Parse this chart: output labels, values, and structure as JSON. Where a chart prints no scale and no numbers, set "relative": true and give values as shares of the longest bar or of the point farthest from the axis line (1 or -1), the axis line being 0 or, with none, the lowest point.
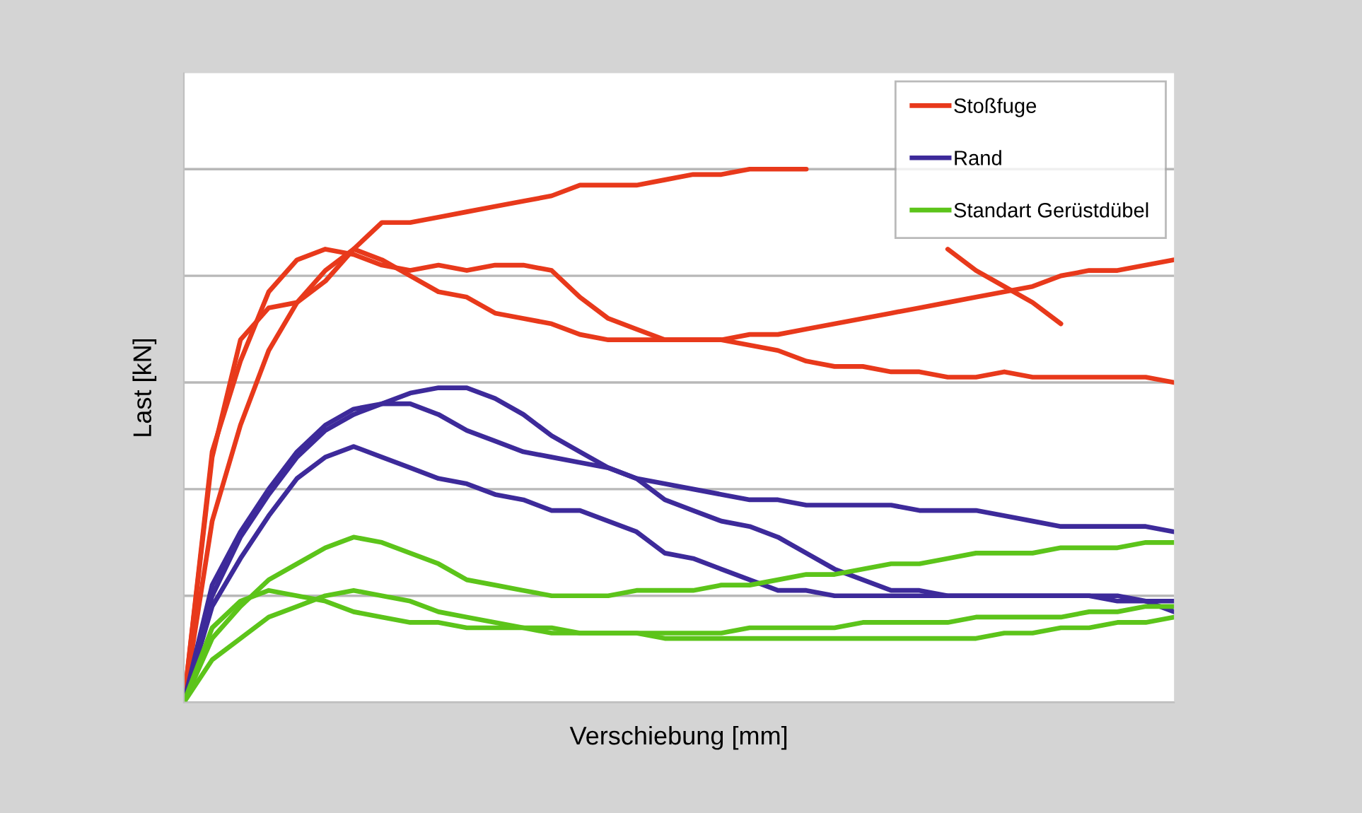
{
  "chart_data": {
    "type": "line",
    "xlabel": "Verschiebung [mm]",
    "ylabel": "Last [kN]",
    "relative": true,
    "grid": "y",
    "legend": "top right",
    "marker": "none",
    "line_style": "solid",
    "tick_labels": false,
    "categories": [
      null,
      null,
      null,
      null,
      null,
      null,
      null,
      null,
      null,
      null,
      null,
      null,
      null,
      null,
      null,
      null,
      null,
      null,
      null,
      null,
      null,
      null,
      null,
      null,
      null,
      null,
      null,
      null,
      null,
      null,
      null,
      null,
      null,
      null,
      null,
      null
    ],
    "series": [
      {
        "name": "Stoßfuge",
        "color": "#e8391b",
        "values": [
          0,
          0.46,
          0.68,
          0.74,
          0.75,
          0.79,
          0.85,
          0.9,
          0.9,
          0.91,
          0.92,
          0.93,
          0.94,
          0.95,
          0.97,
          0.97,
          0.97,
          0.98,
          0.99,
          0.99,
          1.0,
          1.0,
          1.0,
          null,
          null,
          null,
          null,
          0.85,
          0.81,
          0.78,
          0.75,
          0.71,
          null,
          null,
          null,
          null
        ]
      },
      {
        "color": "#e8391b",
        "values": [
          0,
          0.47,
          0.64,
          0.77,
          0.83,
          0.85,
          0.84,
          0.82,
          0.81,
          0.82,
          0.81,
          0.82,
          0.82,
          0.81,
          0.76,
          0.72,
          0.7,
          0.68,
          0.68,
          0.68,
          0.69,
          0.69,
          0.7,
          0.71,
          0.72,
          0.73,
          0.74,
          0.75,
          0.76,
          0.77,
          0.78,
          0.8,
          0.81,
          0.81,
          0.82,
          0.83
        ]
      },
      {
        "color": "#e8391b",
        "values": [
          0,
          0.34,
          0.52,
          0.66,
          0.75,
          0.81,
          0.85,
          0.83,
          0.8,
          0.77,
          0.76,
          0.73,
          0.72,
          0.71,
          0.69,
          0.68,
          0.68,
          0.68,
          0.68,
          0.68,
          0.67,
          0.66,
          0.64,
          0.63,
          0.63,
          0.62,
          0.62,
          0.61,
          0.61,
          0.62,
          0.61,
          0.61,
          0.61,
          0.61,
          0.61,
          0.6
        ]
      },
      {
        "name": "Rand",
        "color": "#3d2a9a",
        "values": [
          0,
          0.2,
          0.31,
          0.39,
          0.46,
          0.51,
          0.54,
          0.56,
          0.58,
          0.59,
          0.59,
          0.57,
          0.54,
          0.5,
          0.47,
          0.44,
          0.42,
          0.41,
          0.4,
          0.39,
          0.38,
          0.38,
          0.37,
          0.37,
          0.37,
          0.37,
          0.36,
          0.36,
          0.36,
          0.35,
          0.34,
          0.33,
          0.33,
          0.33,
          0.33,
          0.32
        ]
      },
      {
        "color": "#3d2a9a",
        "values": [
          0,
          0.22,
          0.32,
          0.4,
          0.47,
          0.52,
          0.55,
          0.56,
          0.56,
          0.54,
          0.51,
          0.49,
          0.47,
          0.46,
          0.45,
          0.44,
          0.42,
          0.38,
          0.36,
          0.34,
          0.33,
          0.31,
          0.28,
          0.25,
          0.23,
          0.21,
          0.21,
          0.2,
          0.2,
          0.2,
          0.2,
          0.2,
          0.2,
          0.19,
          0.19,
          0.19
        ]
      },
      {
        "color": "#3d2a9a",
        "values": [
          0,
          0.18,
          0.27,
          0.35,
          0.42,
          0.46,
          0.48,
          0.46,
          0.44,
          0.42,
          0.41,
          0.39,
          0.38,
          0.36,
          0.36,
          0.34,
          0.32,
          0.28,
          0.27,
          0.25,
          0.23,
          0.21,
          0.21,
          0.2,
          0.2,
          0.2,
          0.2,
          0.2,
          0.2,
          0.2,
          0.2,
          0.2,
          0.2,
          0.2,
          0.19,
          0.17
        ]
      },
      {
        "name": "Standart Gerüstdübel",
        "color": "#5cc41a",
        "values": [
          0,
          0.12,
          0.18,
          0.23,
          0.26,
          0.29,
          0.31,
          0.3,
          0.28,
          0.26,
          0.23,
          0.22,
          0.21,
          0.2,
          0.2,
          0.2,
          0.21,
          0.21,
          0.21,
          0.22,
          0.22,
          0.23,
          0.24,
          0.24,
          0.25,
          0.26,
          0.26,
          0.27,
          0.28,
          0.28,
          0.28,
          0.29,
          0.29,
          0.29,
          0.3,
          0.3
        ]
      },
      {
        "color": "#5cc41a",
        "values": [
          0,
          0.14,
          0.19,
          0.21,
          0.2,
          0.19,
          0.17,
          0.16,
          0.15,
          0.15,
          0.14,
          0.14,
          0.14,
          0.13,
          0.13,
          0.13,
          0.13,
          0.13,
          0.13,
          0.13,
          0.14,
          0.14,
          0.14,
          0.14,
          0.15,
          0.15,
          0.15,
          0.15,
          0.16,
          0.16,
          0.16,
          0.16,
          0.17,
          0.17,
          0.18,
          0.18
        ]
      },
      {
        "color": "#5cc41a",
        "values": [
          0,
          0.08,
          0.12,
          0.16,
          0.18,
          0.2,
          0.21,
          0.2,
          0.19,
          0.17,
          0.16,
          0.15,
          0.14,
          0.14,
          0.13,
          0.13,
          0.13,
          0.12,
          0.12,
          0.12,
          0.12,
          0.12,
          0.12,
          0.12,
          0.12,
          0.12,
          0.12,
          0.12,
          0.12,
          0.13,
          0.13,
          0.14,
          0.14,
          0.15,
          0.15,
          0.16
        ]
      }
    ]
  }
}
